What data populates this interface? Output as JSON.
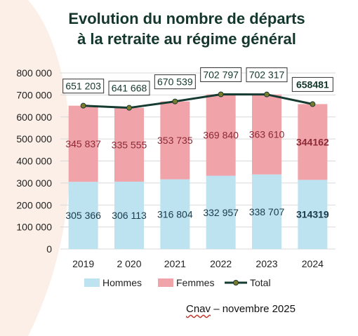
{
  "title": {
    "line1": "Evolution du nombre de départs",
    "line2": "à la retraite au régime général"
  },
  "source": {
    "name": "Cnav",
    "rest": " – novembre 2025"
  },
  "colors": {
    "hommes": "#bde3f0",
    "femmes": "#f1a3aa",
    "total": "#163c32",
    "marker": "#7a7a2a",
    "hommes_label": "#1a3a4a",
    "femmes_label": "#8b2a36",
    "decor": "#fbefe7"
  },
  "chart_data": {
    "type": "bar",
    "stacked": true,
    "categories": [
      "2019",
      "2 020",
      "2021",
      "2022",
      "2023",
      "2024"
    ],
    "series": [
      {
        "name": "Hommes",
        "values": [
          305366,
          306113,
          316804,
          332957,
          338707,
          314319
        ],
        "labels": [
          "305 366",
          "306 113",
          "316 804",
          "332 957",
          "338 707",
          "314319"
        ]
      },
      {
        "name": "Femmes",
        "values": [
          345837,
          335555,
          353735,
          369840,
          363610,
          344162
        ],
        "labels": [
          "345 837",
          "335 555",
          "353 735",
          "369 840",
          "363 610",
          "344162"
        ]
      },
      {
        "name": "Total",
        "type": "line",
        "values": [
          651203,
          641668,
          670539,
          702797,
          702317,
          658481
        ],
        "labels": [
          "651 203",
          "641 668",
          "670 539",
          "702 797",
          "702 317",
          "658481"
        ]
      }
    ],
    "bold_labels_index": 5,
    "ylim": [
      0,
      800000
    ],
    "yticks": [
      0,
      100000,
      200000,
      300000,
      400000,
      500000,
      600000,
      700000,
      800000
    ],
    "ytick_labels": [
      "0",
      "100 000",
      "200 000",
      "300 000",
      "400 000",
      "500 000",
      "600 000",
      "700 000",
      "800 000"
    ],
    "grid": true,
    "legend": [
      "Hommes",
      "Femmes",
      "Total"
    ],
    "legend_position": "bottom"
  }
}
